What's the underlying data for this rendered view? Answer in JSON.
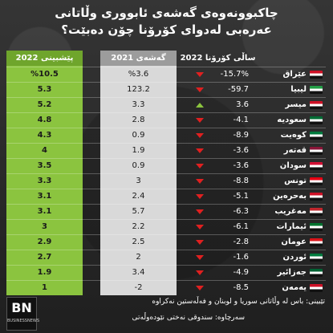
{
  "title": {
    "line1": "چاکبوونەوەی گەشەی ئابووری وڵاتانی",
    "line2": "عەرەبی لەدوای کۆرۆنا چۆن دەبێت؟"
  },
  "headers": {
    "forecast_2022": "پێشبینی 2022",
    "growth_2021": "گەشەی 2021",
    "covid_2022": "ساڵی کۆرۆنا 2022"
  },
  "colors": {
    "forecast_col": "#8bc43f",
    "growth_col": "#d9d9d9",
    "down_arrow": "#e02020",
    "up_arrow": "#8bc43f"
  },
  "chart_data": {
    "type": "table",
    "columns": [
      "پێشبینی 2022",
      "گەشەی 2021",
      "ساڵی کۆرۆنا 2022"
    ],
    "rows": [
      {
        "country": "عێراق",
        "forecast_2022": "%10.5",
        "growth_2021": "%3.6",
        "covid_2022": "-15.7%",
        "trend": "down",
        "flag_color": "#ce1126"
      },
      {
        "country": "لیبیا",
        "forecast_2022": "5.3",
        "growth_2021": "123.2",
        "covid_2022": "-59.7",
        "trend": "down",
        "flag_color": "#239e46"
      },
      {
        "country": "میسر",
        "forecast_2022": "5.2",
        "growth_2021": "3.3",
        "covid_2022": "3.6",
        "trend": "up",
        "flag_color": "#ce1126"
      },
      {
        "country": "سعودیە",
        "forecast_2022": "4.8",
        "growth_2021": "2.8",
        "covid_2022": "-4.1",
        "trend": "down",
        "flag_color": "#006c35"
      },
      {
        "country": "کوەیت",
        "forecast_2022": "4.3",
        "growth_2021": "0.9",
        "covid_2022": "-8.9",
        "trend": "down",
        "flag_color": "#007a3d"
      },
      {
        "country": "قەتەر",
        "forecast_2022": "4",
        "growth_2021": "1.9",
        "covid_2022": "-3.6",
        "trend": "down",
        "flag_color": "#8a1538"
      },
      {
        "country": "سودان",
        "forecast_2022": "3.5",
        "growth_2021": "0.9",
        "covid_2022": "-3.6",
        "trend": "down",
        "flag_color": "#d21034"
      },
      {
        "country": "تونس",
        "forecast_2022": "3.3",
        "growth_2021": "3",
        "covid_2022": "-8.8",
        "trend": "down",
        "flag_color": "#e70013"
      },
      {
        "country": "بەحرەین",
        "forecast_2022": "3.1",
        "growth_2021": "2.4",
        "covid_2022": "-5.1",
        "trend": "down",
        "flag_color": "#ce1126"
      },
      {
        "country": "مەغریب",
        "forecast_2022": "3.1",
        "growth_2021": "5.7",
        "covid_2022": "-6.3",
        "trend": "down",
        "flag_color": "#c1272d"
      },
      {
        "country": "ئیمارات",
        "forecast_2022": "3",
        "growth_2021": "2.2",
        "covid_2022": "-6.1",
        "trend": "down",
        "flag_color": "#00732f"
      },
      {
        "country": "عومان",
        "forecast_2022": "2.9",
        "growth_2021": "2.5",
        "covid_2022": "-2.8",
        "trend": "down",
        "flag_color": "#db161b"
      },
      {
        "country": "ئوردن",
        "forecast_2022": "2.7",
        "growth_2021": "2",
        "covid_2022": "-1.6",
        "trend": "down",
        "flag_color": "#007a3d"
      },
      {
        "country": "جەزائیر",
        "forecast_2022": "1.9",
        "growth_2021": "3.4",
        "covid_2022": "-4.9",
        "trend": "down",
        "flag_color": "#006233"
      },
      {
        "country": "یەمەن",
        "forecast_2022": "1",
        "growth_2021": "-2",
        "covid_2022": "-8.5",
        "trend": "down",
        "flag_color": "#ce1126"
      }
    ]
  },
  "footer": {
    "note": "تێبینی: باس لە وڵاتانی سوریا و لوبنان و فەڵەستین نەکراوە",
    "source": "سەرچاوە: سندوقی نەختی نێودەوڵەتی"
  },
  "logo": {
    "main": "BN",
    "sub": "BUSINESSNEWS"
  }
}
